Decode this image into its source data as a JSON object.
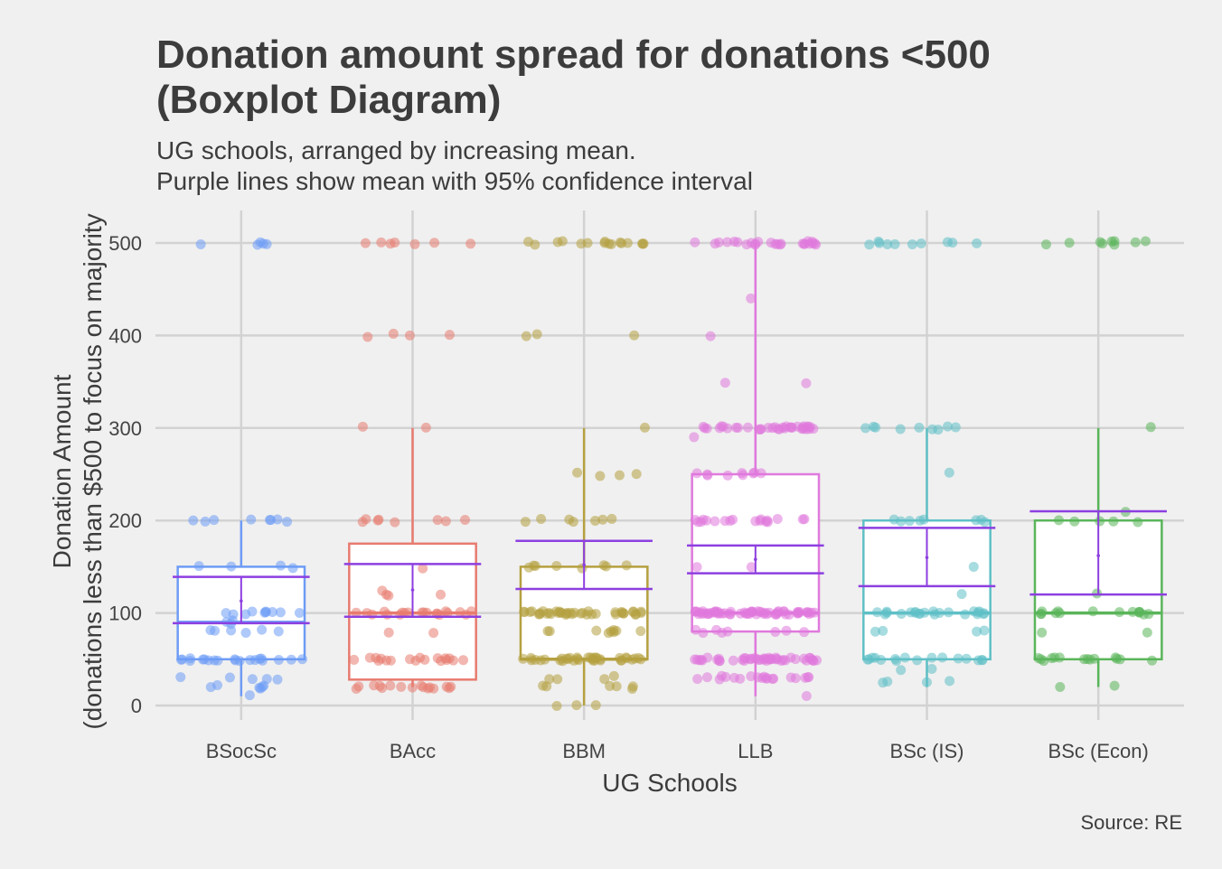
{
  "chart_data": {
    "type": "boxplot",
    "title_lines": [
      "Donation amount spread for donations <500",
      "(Boxplot Diagram)"
    ],
    "subtitle_lines": [
      "UG schools, arranged by increasing mean.",
      "Purple lines show mean with 95% confidence interval"
    ],
    "xlabel": "UG Schools",
    "ylabel_lines": [
      "Donation Amount",
      "(donations less than $500 to focus on majority"
    ],
    "caption": "Source: RE",
    "ylim": [
      -15,
      535
    ],
    "yticks": [
      0,
      100,
      200,
      300,
      400,
      500
    ],
    "grid": true,
    "legend": "none",
    "ci_color": "#8d3fe0",
    "categories": [
      "BSocSc",
      "BAcc",
      "BBM",
      "LLB",
      "BSc (IS)",
      "BSc (Econ)"
    ],
    "series": [
      {
        "name": "BSocSc",
        "color": "#6e9cf5",
        "box": {
          "whisker_low": 10,
          "q1": 50,
          "median": 90,
          "q3": 150,
          "whisker_high": 200
        },
        "mean": 113,
        "ci": [
          89,
          139
        ],
        "points": [
          [
            500,
            5
          ],
          [
            200,
            8
          ],
          [
            150,
            4
          ],
          [
            100,
            10
          ],
          [
            90,
            3
          ],
          [
            80,
            6
          ],
          [
            50,
            20
          ],
          [
            30,
            5
          ],
          [
            20,
            6
          ],
          [
            10,
            1
          ]
        ]
      },
      {
        "name": "BAcc",
        "color": "#e87b70",
        "box": {
          "whisker_low": 20,
          "q1": 28,
          "median": 100,
          "q3": 175,
          "whisker_high": 300
        },
        "mean": 125,
        "ci": [
          96,
          153
        ],
        "points": [
          [
            500,
            7
          ],
          [
            400,
            4
          ],
          [
            300,
            2
          ],
          [
            200,
            8
          ],
          [
            150,
            1
          ],
          [
            125,
            1
          ],
          [
            120,
            3
          ],
          [
            100,
            20
          ],
          [
            80,
            2
          ],
          [
            50,
            18
          ],
          [
            20,
            16
          ]
        ]
      },
      {
        "name": "BBM",
        "color": "#b5a040",
        "box": {
          "whisker_low": 0,
          "q1": 50,
          "median": 50,
          "q3": 150,
          "whisker_high": 300
        },
        "mean": 152,
        "ci": [
          126,
          178
        ],
        "points": [
          [
            500,
            16
          ],
          [
            400,
            3
          ],
          [
            300,
            1
          ],
          [
            250,
            4
          ],
          [
            200,
            7
          ],
          [
            150,
            8
          ],
          [
            100,
            40
          ],
          [
            80,
            9
          ],
          [
            50,
            35
          ],
          [
            30,
            4
          ],
          [
            20,
            6
          ],
          [
            0,
            3
          ]
        ]
      },
      {
        "name": "LLB",
        "color": "#e079dd",
        "box": {
          "whisker_low": 10,
          "q1": 80,
          "median": 100,
          "q3": 250,
          "whisker_high": 500
        },
        "mean": 158,
        "ci": [
          143,
          173
        ],
        "points": [
          [
            500,
            25
          ],
          [
            440,
            1
          ],
          [
            400,
            1
          ],
          [
            350,
            2
          ],
          [
            300,
            35
          ],
          [
            290,
            1
          ],
          [
            250,
            9
          ],
          [
            200,
            18
          ],
          [
            150,
            2
          ],
          [
            100,
            60
          ],
          [
            80,
            8
          ],
          [
            50,
            45
          ],
          [
            30,
            20
          ],
          [
            10,
            1
          ]
        ]
      },
      {
        "name": "BSc (IS)",
        "color": "#5fc0c6",
        "box": {
          "whisker_low": 20,
          "q1": 50,
          "median": 100,
          "q3": 200,
          "whisker_high": 300
        },
        "mean": 160,
        "ci": [
          129,
          192
        ],
        "points": [
          [
            500,
            10
          ],
          [
            300,
            9
          ],
          [
            250,
            1
          ],
          [
            200,
            8
          ],
          [
            150,
            1
          ],
          [
            120,
            1
          ],
          [
            100,
            22
          ],
          [
            80,
            4
          ],
          [
            50,
            16
          ],
          [
            40,
            2
          ],
          [
            25,
            4
          ]
        ]
      },
      {
        "name": "BSc (Econ)",
        "color": "#5ab55a",
        "box": {
          "whisker_low": 20,
          "q1": 50,
          "median": 100,
          "q3": 200,
          "whisker_high": 300
        },
        "mean": 162,
        "ci": [
          120,
          210
        ],
        "points": [
          [
            500,
            9
          ],
          [
            300,
            1
          ],
          [
            210,
            1
          ],
          [
            200,
            5
          ],
          [
            120,
            1
          ],
          [
            100,
            14
          ],
          [
            80,
            2
          ],
          [
            50,
            14
          ],
          [
            20,
            2
          ]
        ]
      }
    ]
  }
}
